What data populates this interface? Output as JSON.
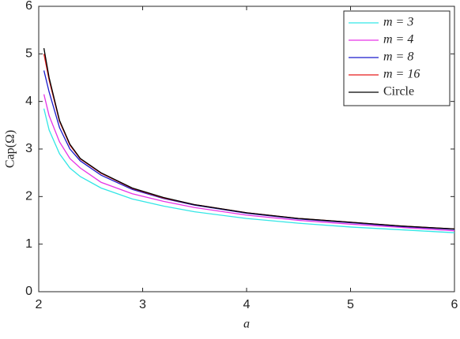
{
  "chart_data": {
    "type": "line",
    "x_label": "a",
    "y_label": "Cap(Ω)",
    "x": [
      2.05,
      2.1,
      2.2,
      2.3,
      2.4,
      2.6,
      2.9,
      3.2,
      3.5,
      4,
      4.5,
      5,
      5.5,
      6
    ],
    "series": [
      {
        "name": "m = 3",
        "color": "#33e6e6",
        "values": [
          3.85,
          3.4,
          2.9,
          2.6,
          2.42,
          2.18,
          1.95,
          1.8,
          1.68,
          1.54,
          1.44,
          1.36,
          1.3,
          1.24
        ]
      },
      {
        "name": "m = 4",
        "color": "#e633e6",
        "values": [
          4.15,
          3.7,
          3.15,
          2.8,
          2.6,
          2.3,
          2.06,
          1.9,
          1.77,
          1.61,
          1.5,
          1.42,
          1.35,
          1.28
        ]
      },
      {
        "name": "m = 8",
        "color": "#1a1acc",
        "values": [
          4.65,
          4.2,
          3.45,
          3.0,
          2.75,
          2.45,
          2.15,
          1.96,
          1.82,
          1.65,
          1.53,
          1.45,
          1.37,
          1.31
        ]
      },
      {
        "name": "m = 16",
        "color": "#e61a1a",
        "values": [
          5.0,
          4.45,
          3.58,
          3.08,
          2.79,
          2.49,
          2.17,
          1.97,
          1.83,
          1.66,
          1.54,
          1.46,
          1.38,
          1.32
        ]
      },
      {
        "name": "Circle",
        "color": "#000000",
        "values": [
          5.12,
          4.5,
          3.6,
          3.1,
          2.8,
          2.5,
          2.18,
          1.98,
          1.83,
          1.66,
          1.54,
          1.46,
          1.38,
          1.32
        ]
      }
    ],
    "xlim": [
      2,
      6
    ],
    "xticks": [
      2,
      3,
      4,
      5,
      6
    ],
    "ylim": [
      0,
      6
    ],
    "yticks": [
      0,
      1,
      2,
      3,
      4,
      5,
      6
    ],
    "legend": "upper right"
  }
}
